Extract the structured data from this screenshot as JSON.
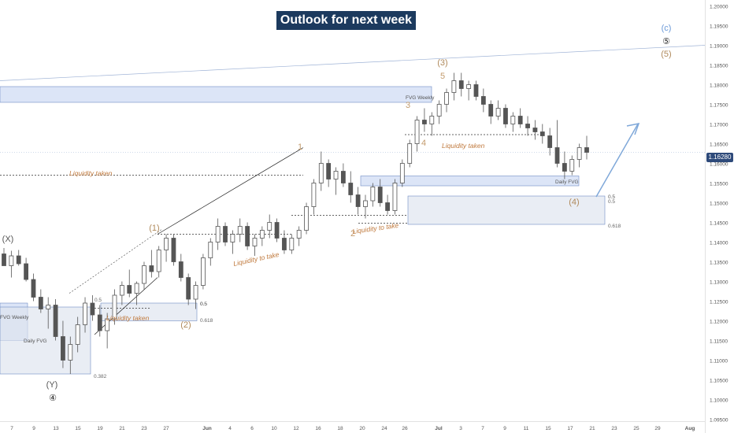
{
  "title": "Outlook for next week",
  "current_price": "1.16280",
  "chart_data": {
    "type": "candlestick",
    "symbol_context": "price chart with Elliott wave annotations",
    "y_ticks": [
      "1.20000",
      "1.19500",
      "1.19000",
      "1.18500",
      "1.18000",
      "1.17500",
      "1.17000",
      "1.16500",
      "1.16000",
      "1.15500",
      "1.15000",
      "1.14500",
      "1.14000",
      "1.13500",
      "1.13000",
      "1.12500",
      "1.12000",
      "1.11500",
      "1.11000",
      "1.10500",
      "1.10000",
      "1.09500"
    ],
    "x_ticks": [
      "7",
      "9",
      "13",
      "15",
      "19",
      "21",
      "23",
      "27",
      "Jun",
      "4",
      "6",
      "10",
      "12",
      "16",
      "18",
      "20",
      "24",
      "26",
      "Jul",
      "3",
      "7",
      "9",
      "11",
      "15",
      "17",
      "21",
      "23",
      "25",
      "29",
      "Aug"
    ],
    "ylim": [
      1.0945,
      1.2015
    ],
    "wave_labels": [
      "(X)",
      "(Y)",
      "④",
      "(1)",
      "(2)",
      "1",
      "2",
      "3",
      "4",
      "5",
      "(3)",
      "(4)",
      "(c)",
      "⑤",
      "(5)"
    ],
    "zones": [
      {
        "label": "FVG Weekly",
        "from": 1.1795,
        "to": 1.1755
      },
      {
        "label": "Daily FVG",
        "from": 1.1568,
        "to": 1.1543
      },
      {
        "label": "FVG Weekly",
        "from": 1.1245,
        "to": 1.115
      },
      {
        "label": "Daily FVG",
        "from": 1.1235,
        "to": 1.1065
      },
      {
        "label": "0.5",
        "from": 1.1517,
        "to": 1.1445
      },
      {
        "label": "0.5",
        "from": 1.1245,
        "to": 1.12
      }
    ],
    "fib_labels": [
      "0.5",
      "0.618",
      "0.5",
      "0.618",
      "0.382",
      "0.5"
    ],
    "annotations": [
      "Liquidity taken",
      "Liquidity taken",
      "Liquidity to take",
      "Liquidity to take",
      "Liquidity taken"
    ],
    "candles": [
      [
        1.137,
        1.1385,
        1.1345,
        1.134
      ],
      [
        1.134,
        1.1378,
        1.131,
        1.1365
      ],
      [
        1.1365,
        1.138,
        1.134,
        1.1345
      ],
      [
        1.1345,
        1.136,
        1.13,
        1.1305
      ],
      [
        1.1305,
        1.132,
        1.125,
        1.126
      ],
      [
        1.126,
        1.128,
        1.122,
        1.123
      ],
      [
        1.123,
        1.126,
        1.118,
        1.124
      ],
      [
        1.124,
        1.1255,
        1.115,
        1.116
      ],
      [
        1.116,
        1.12,
        1.108,
        1.11
      ],
      [
        1.11,
        1.116,
        1.1065,
        1.114
      ],
      [
        1.114,
        1.121,
        1.112,
        1.119
      ],
      [
        1.119,
        1.126,
        1.117,
        1.1245
      ],
      [
        1.1245,
        1.1265,
        1.12,
        1.1215
      ],
      [
        1.1215,
        1.124,
        1.116,
        1.1175
      ],
      [
        1.1175,
        1.122,
        1.113,
        1.1205
      ],
      [
        1.1205,
        1.128,
        1.119,
        1.1265
      ],
      [
        1.1265,
        1.13,
        1.124,
        1.129
      ],
      [
        1.129,
        1.133,
        1.126,
        1.127
      ],
      [
        1.127,
        1.13,
        1.124,
        1.1295
      ],
      [
        1.1295,
        1.135,
        1.128,
        1.134
      ],
      [
        1.134,
        1.138,
        1.131,
        1.1325
      ],
      [
        1.1325,
        1.139,
        1.131,
        1.138
      ],
      [
        1.138,
        1.142,
        1.135,
        1.141
      ],
      [
        1.141,
        1.142,
        1.134,
        1.135
      ],
      [
        1.135,
        1.137,
        1.13,
        1.131
      ],
      [
        1.131,
        1.132,
        1.124,
        1.1255
      ],
      [
        1.1255,
        1.13,
        1.123,
        1.129
      ],
      [
        1.129,
        1.137,
        1.128,
        1.136
      ],
      [
        1.136,
        1.141,
        1.134,
        1.14
      ],
      [
        1.14,
        1.146,
        1.138,
        1.144
      ],
      [
        1.144,
        1.145,
        1.139,
        1.14
      ],
      [
        1.14,
        1.143,
        1.137,
        1.142
      ],
      [
        1.142,
        1.146,
        1.14,
        1.144
      ],
      [
        1.144,
        1.145,
        1.138,
        1.139
      ],
      [
        1.139,
        1.142,
        1.1365,
        1.141
      ],
      [
        1.141,
        1.144,
        1.139,
        1.143
      ],
      [
        1.143,
        1.147,
        1.141,
        1.145
      ],
      [
        1.145,
        1.146,
        1.14,
        1.141
      ],
      [
        1.141,
        1.143,
        1.137,
        1.138
      ],
      [
        1.138,
        1.142,
        1.137,
        1.141
      ],
      [
        1.141,
        1.144,
        1.139,
        1.143
      ],
      [
        1.143,
        1.15,
        1.142,
        1.149
      ],
      [
        1.149,
        1.156,
        1.147,
        1.155
      ],
      [
        1.155,
        1.163,
        1.153,
        1.16
      ],
      [
        1.16,
        1.161,
        1.154,
        1.156
      ],
      [
        1.156,
        1.159,
        1.152,
        1.158
      ],
      [
        1.158,
        1.16,
        1.154,
        1.155
      ],
      [
        1.155,
        1.158,
        1.15,
        1.152
      ],
      [
        1.152,
        1.154,
        1.147,
        1.149
      ],
      [
        1.149,
        1.152,
        1.146,
        1.1505
      ],
      [
        1.1505,
        1.155,
        1.149,
        1.154
      ],
      [
        1.154,
        1.156,
        1.149,
        1.15
      ],
      [
        1.15,
        1.152,
        1.147,
        1.148
      ],
      [
        1.148,
        1.156,
        1.147,
        1.155
      ],
      [
        1.155,
        1.161,
        1.154,
        1.16
      ],
      [
        1.16,
        1.166,
        1.159,
        1.165
      ],
      [
        1.165,
        1.172,
        1.163,
        1.171
      ],
      [
        1.171,
        1.174,
        1.168,
        1.17
      ],
      [
        1.17,
        1.173,
        1.167,
        1.172
      ],
      [
        1.172,
        1.176,
        1.17,
        1.175
      ],
      [
        1.175,
        1.179,
        1.173,
        1.178
      ],
      [
        1.178,
        1.183,
        1.176,
        1.181
      ],
      [
        1.181,
        1.183,
        1.177,
        1.179
      ],
      [
        1.179,
        1.181,
        1.176,
        1.18
      ],
      [
        1.18,
        1.181,
        1.176,
        1.177
      ],
      [
        1.177,
        1.179,
        1.173,
        1.175
      ],
      [
        1.175,
        1.176,
        1.17,
        1.172
      ],
      [
        1.172,
        1.176,
        1.171,
        1.174
      ],
      [
        1.174,
        1.175,
        1.169,
        1.17
      ],
      [
        1.17,
        1.173,
        1.168,
        1.172
      ],
      [
        1.172,
        1.174,
        1.169,
        1.17
      ],
      [
        1.17,
        1.172,
        1.167,
        1.169
      ],
      [
        1.169,
        1.171,
        1.166,
        1.168
      ],
      [
        1.168,
        1.17,
        1.165,
        1.167
      ],
      [
        1.167,
        1.169,
        1.162,
        1.164
      ],
      [
        1.164,
        1.171,
        1.159,
        1.16
      ],
      [
        1.16,
        1.163,
        1.156,
        1.158
      ],
      [
        1.158,
        1.162,
        1.157,
        1.161
      ],
      [
        1.161,
        1.165,
        1.159,
        1.164
      ],
      [
        1.164,
        1.167,
        1.161,
        1.1628
      ]
    ]
  }
}
